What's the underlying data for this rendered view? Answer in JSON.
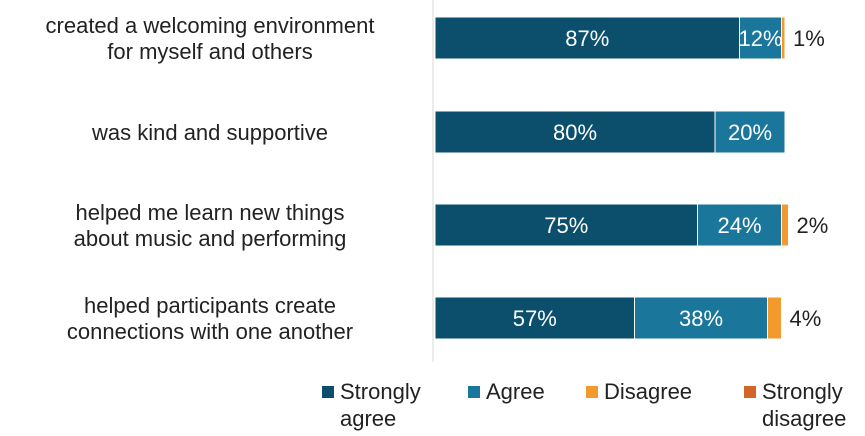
{
  "chart_data": {
    "type": "bar",
    "orientation": "horizontal",
    "stacked": true,
    "categories": [
      "created a welcoming environment\nfor myself and others",
      "was kind and supportive",
      "helped me learn new things\nabout music and performing",
      "helped participants create\nconnections with one another"
    ],
    "series": [
      {
        "name": "Strongly\nagree",
        "color": "#0b4f6c",
        "values": [
          87,
          80,
          75,
          57
        ]
      },
      {
        "name": "Agree",
        "color": "#1a769b",
        "values": [
          12,
          20,
          24,
          38
        ]
      },
      {
        "name": "Disagree",
        "color": "#f29a2e",
        "values": [
          1,
          0,
          2,
          4
        ]
      },
      {
        "name": "Strongly\ndisagree",
        "color": "#d3652b",
        "values": [
          0,
          0,
          0,
          0
        ]
      }
    ],
    "data_labels": [
      [
        "87%",
        "12%",
        "1%",
        ""
      ],
      [
        "80%",
        "20%",
        "",
        ""
      ],
      [
        "75%",
        "24%",
        "2%",
        ""
      ],
      [
        "57%",
        "38%",
        "4%",
        ""
      ]
    ],
    "xlim": [
      0,
      100
    ],
    "grid": false,
    "legend_position": "bottom"
  }
}
